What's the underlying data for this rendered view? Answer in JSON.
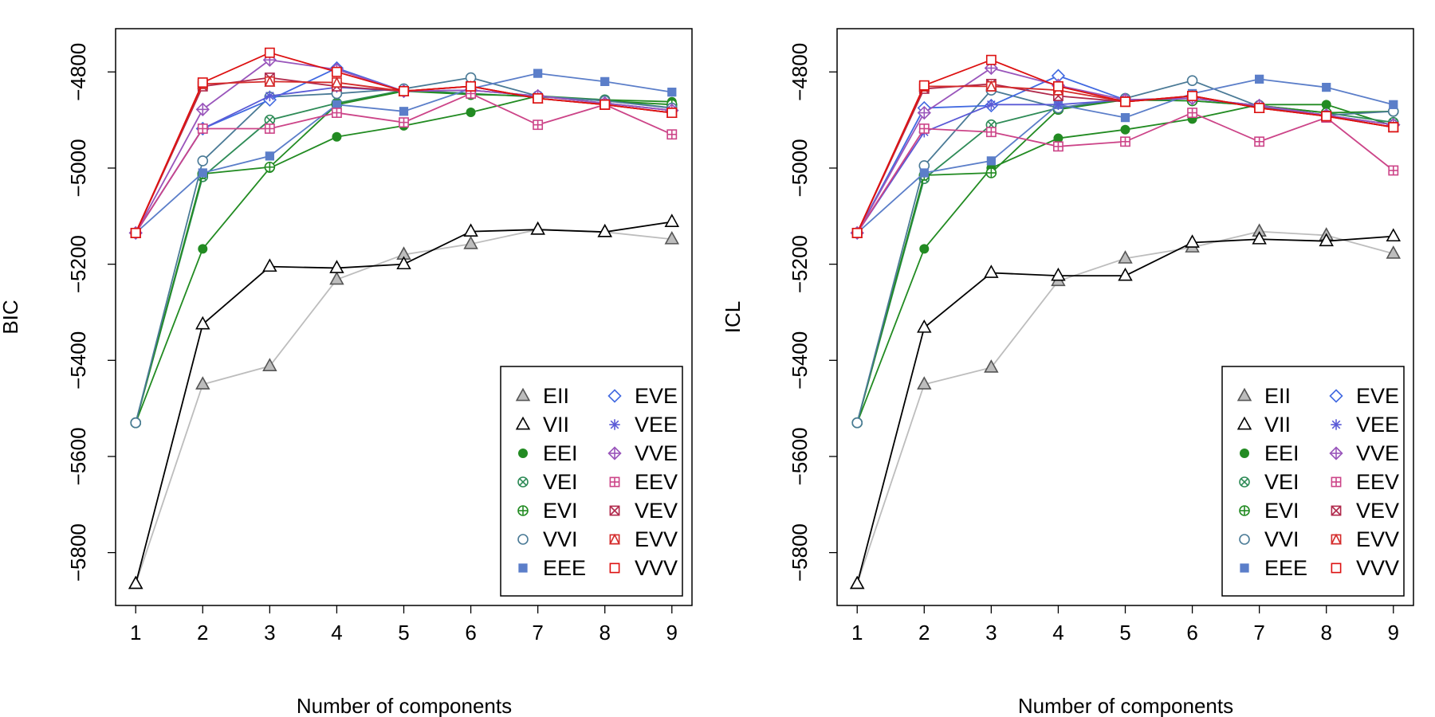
{
  "chart_data": [
    {
      "type": "line",
      "title": "",
      "xlabel": "Number of components",
      "ylabel": "BIC",
      "x": [
        1,
        2,
        3,
        4,
        5,
        6,
        7,
        8,
        9
      ],
      "xticks": [
        "1",
        "2",
        "3",
        "4",
        "5",
        "6",
        "7",
        "8",
        "9"
      ],
      "yticks": [
        -5800,
        -5600,
        -5400,
        -5200,
        -5000,
        -4800
      ],
      "ylim": [
        -5910,
        -4710
      ],
      "xlim": [
        0.7,
        9.3
      ],
      "legend_position": "bottom-right",
      "legend_columns": 2,
      "series": [
        {
          "name": "EII",
          "color": "#bdbdbd",
          "marker": "triangle-filled",
          "values": [
            -5865,
            -5450,
            -5412,
            -5232,
            -5180,
            -5158,
            -5128,
            -5133,
            -5148
          ]
        },
        {
          "name": "VII",
          "color": "#000000",
          "marker": "triangle-open",
          "values": [
            -5865,
            -5325,
            -5205,
            -5208,
            -5200,
            -5132,
            -5128,
            -5133,
            -5112
          ]
        },
        {
          "name": "EEI",
          "color": "#228b22",
          "marker": "circle-filled",
          "values": [
            -5530,
            -5168,
            -5000,
            -4935,
            -4912,
            -4884,
            -4850,
            -4858,
            -4862
          ]
        },
        {
          "name": "VEI",
          "color": "#2e8b57",
          "marker": "circle-x",
          "values": [
            -5530,
            -5018,
            -4900,
            -4865,
            -4838,
            -4845,
            -4852,
            -4858,
            -4875
          ]
        },
        {
          "name": "EVI",
          "color": "#228b22",
          "marker": "circle-plus",
          "values": [
            -5530,
            -5012,
            -4998,
            -4868,
            -4840,
            -4847,
            -4850,
            -4860,
            -4868
          ]
        },
        {
          "name": "VVI",
          "color": "#4a7a96",
          "marker": "circle-open",
          "values": [
            -5530,
            -4985,
            -4852,
            -4845,
            -4835,
            -4812,
            -4850,
            -4860,
            -4875
          ]
        },
        {
          "name": "EEE",
          "color": "#5b7ec9",
          "marker": "square-filled",
          "values": [
            -5135,
            -5010,
            -4975,
            -4868,
            -4882,
            -4835,
            -4803,
            -4820,
            -4842
          ]
        },
        {
          "name": "EVE",
          "color": "#4169e1",
          "marker": "diamond-open",
          "values": [
            -5135,
            -4918,
            -4858,
            -4792,
            -4840,
            -4838,
            -4850,
            -4865,
            -4880
          ]
        },
        {
          "name": "VEE",
          "color": "#5a5ad6",
          "marker": "asterisk",
          "values": [
            -5135,
            -4918,
            -4850,
            -4832,
            -4840,
            -4838,
            -4850,
            -4865,
            -4880
          ]
        },
        {
          "name": "VVE",
          "color": "#9955bb",
          "marker": "diamond-plus",
          "values": [
            -5135,
            -4878,
            -4775,
            -4795,
            -4840,
            -4838,
            -4850,
            -4865,
            -4880
          ]
        },
        {
          "name": "EEV",
          "color": "#cc4488",
          "marker": "square-plus",
          "values": [
            -5135,
            -4918,
            -4918,
            -4885,
            -4905,
            -4845,
            -4910,
            -4868,
            -4930
          ]
        },
        {
          "name": "VEV",
          "color": "#b0284b",
          "marker": "square-x",
          "values": [
            -5135,
            -4830,
            -4812,
            -4830,
            -4840,
            -4830,
            -4855,
            -4868,
            -4885
          ]
        },
        {
          "name": "EVV",
          "color": "#d42a2a",
          "marker": "square-triangle",
          "values": [
            -5135,
            -4825,
            -4820,
            -4822,
            -4840,
            -4830,
            -4855,
            -4868,
            -4885
          ]
        },
        {
          "name": "VVV",
          "color": "#dd1111",
          "marker": "square-open",
          "values": [
            -5135,
            -4822,
            -4760,
            -4800,
            -4840,
            -4830,
            -4855,
            -4868,
            -4885
          ]
        }
      ]
    },
    {
      "type": "line",
      "title": "",
      "xlabel": "Number of components",
      "ylabel": "ICL",
      "x": [
        1,
        2,
        3,
        4,
        5,
        6,
        7,
        8,
        9
      ],
      "xticks": [
        "1",
        "2",
        "3",
        "4",
        "5",
        "6",
        "7",
        "8",
        "9"
      ],
      "yticks": [
        -5800,
        -5600,
        -5400,
        -5200,
        -5000,
        -4800
      ],
      "ylim": [
        -5910,
        -4710
      ],
      "xlim": [
        0.7,
        9.3
      ],
      "legend_position": "bottom-right",
      "legend_columns": 2,
      "series": [
        {
          "name": "EII",
          "color": "#bdbdbd",
          "marker": "triangle-filled",
          "values": [
            -5865,
            -5450,
            -5415,
            -5235,
            -5188,
            -5165,
            -5132,
            -5140,
            -5178
          ]
        },
        {
          "name": "VII",
          "color": "#000000",
          "marker": "triangle-open",
          "values": [
            -5865,
            -5332,
            -5218,
            -5224,
            -5224,
            -5155,
            -5148,
            -5152,
            -5142
          ]
        },
        {
          "name": "EEI",
          "color": "#228b22",
          "marker": "circle-filled",
          "values": [
            -5530,
            -5168,
            -5000,
            -4938,
            -4920,
            -4898,
            -4868,
            -4868,
            -4912
          ]
        },
        {
          "name": "VEI",
          "color": "#2e8b57",
          "marker": "circle-x",
          "values": [
            -5530,
            -5022,
            -4910,
            -4875,
            -4858,
            -4860,
            -4870,
            -4885,
            -4905
          ]
        },
        {
          "name": "EVI",
          "color": "#228b22",
          "marker": "circle-plus",
          "values": [
            -5530,
            -5015,
            -5010,
            -4878,
            -4858,
            -4860,
            -4870,
            -4885,
            -4882
          ]
        },
        {
          "name": "VVI",
          "color": "#4a7a96",
          "marker": "circle-open",
          "values": [
            -5530,
            -4995,
            -4838,
            -4875,
            -4855,
            -4818,
            -4872,
            -4890,
            -4882
          ]
        },
        {
          "name": "EEE",
          "color": "#5b7ec9",
          "marker": "square-filled",
          "values": [
            -5135,
            -5010,
            -4985,
            -4868,
            -4895,
            -4845,
            -4815,
            -4832,
            -4868
          ]
        },
        {
          "name": "EVE",
          "color": "#4169e1",
          "marker": "diamond-open",
          "values": [
            -5135,
            -4875,
            -4870,
            -4808,
            -4858,
            -4855,
            -4870,
            -4890,
            -4910
          ]
        },
        {
          "name": "VEE",
          "color": "#5a5ad6",
          "marker": "asterisk",
          "values": [
            -5135,
            -4925,
            -4868,
            -4868,
            -4858,
            -4855,
            -4870,
            -4890,
            -4910
          ]
        },
        {
          "name": "VVE",
          "color": "#9955bb",
          "marker": "diamond-plus",
          "values": [
            -5135,
            -4885,
            -4792,
            -4828,
            -4858,
            -4855,
            -4870,
            -4890,
            -4910
          ]
        },
        {
          "name": "EEV",
          "color": "#cc4488",
          "marker": "square-plus",
          "values": [
            -5135,
            -4918,
            -4925,
            -4955,
            -4945,
            -4885,
            -4945,
            -4895,
            -5005
          ]
        },
        {
          "name": "VEV",
          "color": "#b0284b",
          "marker": "square-x",
          "values": [
            -5135,
            -4835,
            -4825,
            -4850,
            -4862,
            -4850,
            -4875,
            -4892,
            -4915
          ]
        },
        {
          "name": "EVV",
          "color": "#d42a2a",
          "marker": "square-triangle",
          "values": [
            -5135,
            -4830,
            -4830,
            -4838,
            -4862,
            -4850,
            -4875,
            -4892,
            -4915
          ]
        },
        {
          "name": "VVV",
          "color": "#dd1111",
          "marker": "square-open",
          "values": [
            -5135,
            -4828,
            -4775,
            -4830,
            -4862,
            -4850,
            -4875,
            -4892,
            -4915
          ]
        }
      ]
    }
  ]
}
